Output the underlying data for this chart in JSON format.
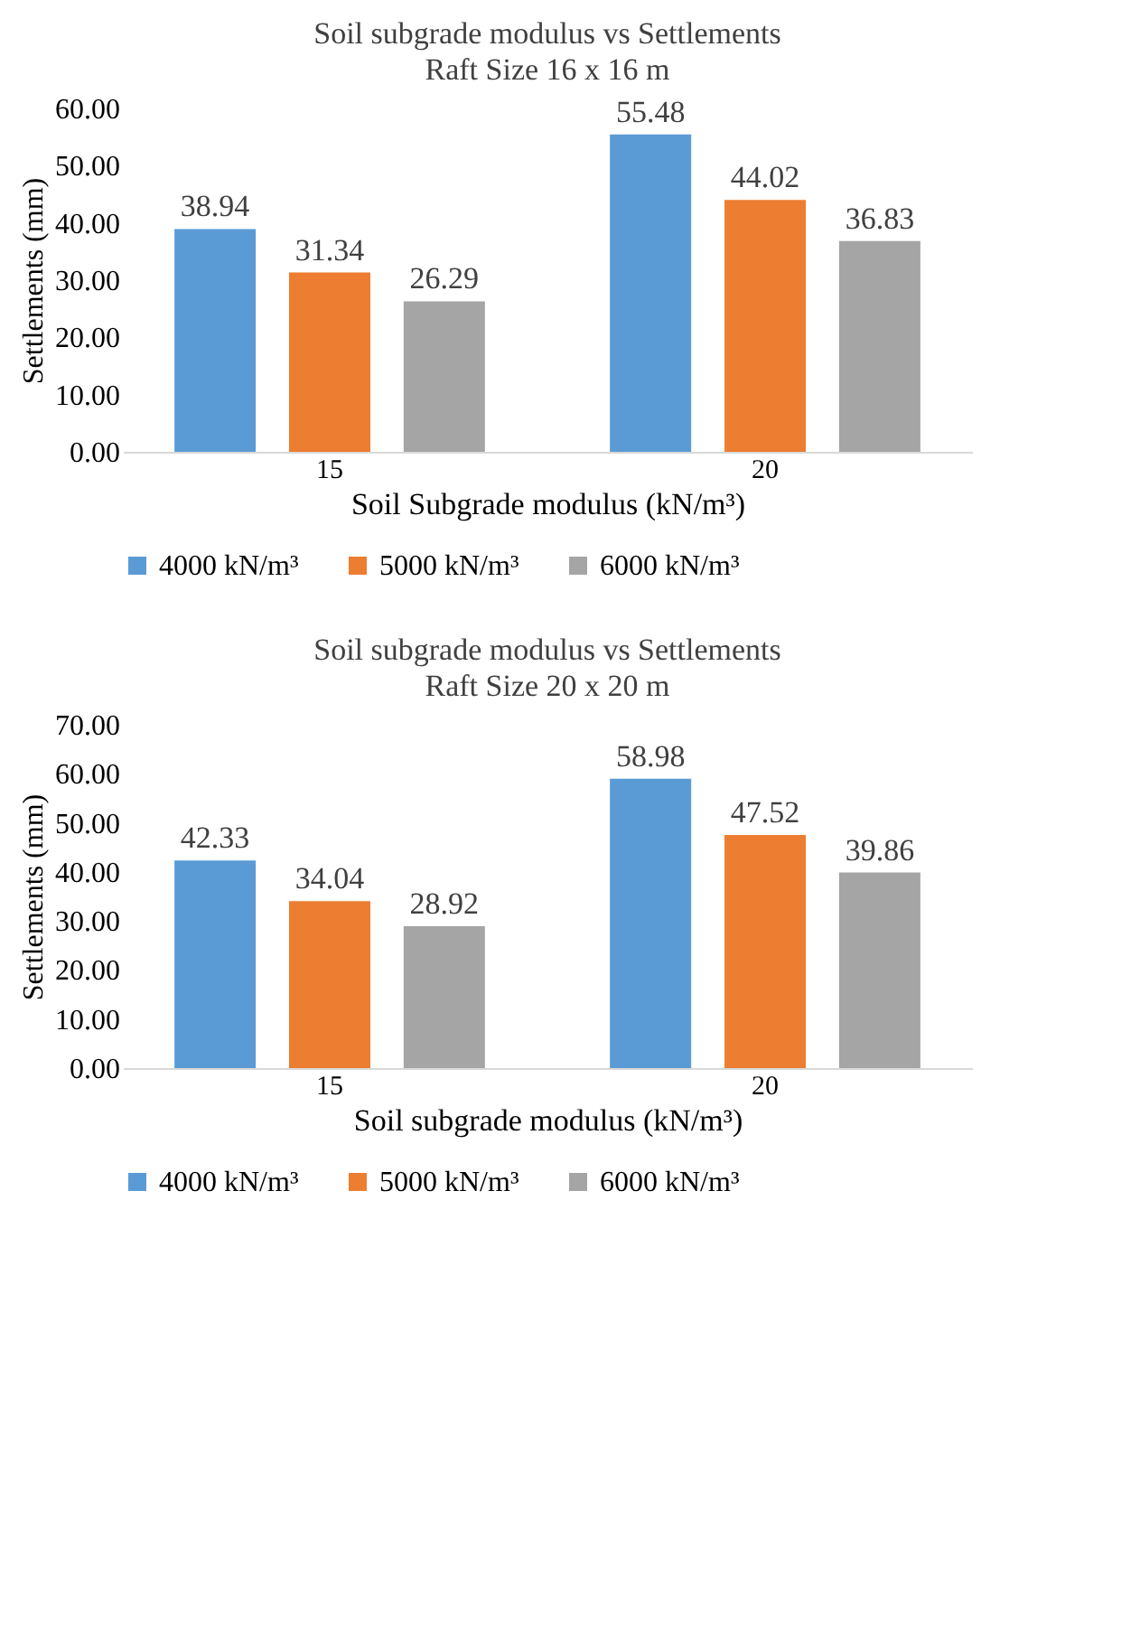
{
  "chart_data": [
    {
      "type": "bar",
      "title": "Soil subgrade modulus vs Settlements",
      "subtitle": "Raft Size 16 x 16 m",
      "xlabel": "Soil Subgrade modulus (kN/m³)",
      "ylabel": "Settlements (mm)",
      "categories": [
        "15",
        "20"
      ],
      "series": [
        {
          "name": "4000  kN/m³",
          "color": "#5b9bd5",
          "values": [
            38.94,
            55.48
          ]
        },
        {
          "name": "5000  kN/m³",
          "color": "#ed7d31",
          "values": [
            31.34,
            44.02
          ]
        },
        {
          "name": "6000  kN/m³",
          "color": "#a5a5a5",
          "values": [
            26.29,
            36.83
          ]
        }
      ],
      "ylim": [
        0,
        60
      ],
      "yticks": [
        {
          "value": 0,
          "label": "0.00"
        },
        {
          "value": 10,
          "label": "10.00"
        },
        {
          "value": 20,
          "label": "20.00"
        },
        {
          "value": 30,
          "label": "30.00"
        },
        {
          "value": 40,
          "label": "40.00"
        },
        {
          "value": 50,
          "label": "50.00"
        },
        {
          "value": 60,
          "label": "60.00"
        }
      ],
      "data_labels": true,
      "grid": false,
      "legend": "bottom"
    },
    {
      "type": "bar",
      "title": "Soil subgrade modulus vs Settlements",
      "subtitle": "Raft Size 20 x 20 m",
      "xlabel": "Soil subgrade modulus (kN/m³)",
      "ylabel": "Settlements (mm)",
      "categories": [
        "15",
        "20"
      ],
      "series": [
        {
          "name": "4000  kN/m³",
          "color": "#5b9bd5",
          "values": [
            42.33,
            58.98
          ]
        },
        {
          "name": "5000  kN/m³",
          "color": "#ed7d31",
          "values": [
            34.04,
            47.52
          ]
        },
        {
          "name": "6000  kN/m³",
          "color": "#a5a5a5",
          "values": [
            28.92,
            39.86
          ]
        }
      ],
      "ylim": [
        0,
        70
      ],
      "yticks": [
        {
          "value": 0,
          "label": "0.00"
        },
        {
          "value": 10,
          "label": "10.00"
        },
        {
          "value": 20,
          "label": "20.00"
        },
        {
          "value": 30,
          "label": "30.00"
        },
        {
          "value": 40,
          "label": "40.00"
        },
        {
          "value": 50,
          "label": "50.00"
        },
        {
          "value": 60,
          "label": "60.00"
        },
        {
          "value": 70,
          "label": "70.00"
        }
      ],
      "data_labels": true,
      "grid": false,
      "legend": "bottom"
    }
  ]
}
